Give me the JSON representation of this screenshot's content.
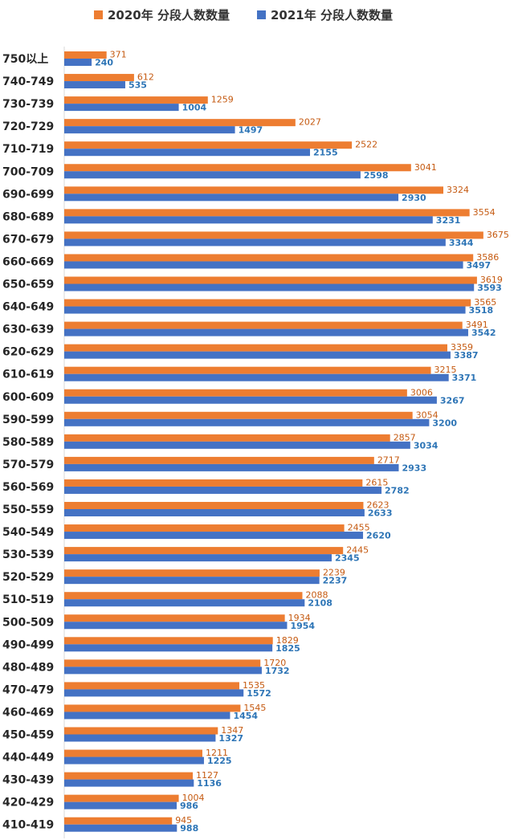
{
  "chart_data": {
    "type": "bar",
    "orientation": "horizontal",
    "title": "",
    "xlabel": "",
    "ylabel": "",
    "xlim": [
      0,
      3800
    ],
    "grid": false,
    "legend": "top",
    "categories": [
      "750以上",
      "740-749",
      "730-739",
      "720-729",
      "710-719",
      "700-709",
      "690-699",
      "680-689",
      "670-679",
      "660-669",
      "650-659",
      "640-649",
      "630-639",
      "620-629",
      "610-619",
      "600-609",
      "590-599",
      "580-589",
      "570-579",
      "560-569",
      "550-559",
      "540-549",
      "530-539",
      "520-529",
      "510-519",
      "500-509",
      "490-499",
      "480-489",
      "470-479",
      "460-469",
      "450-459",
      "440-449",
      "430-439",
      "420-429",
      "410-419"
    ],
    "series": [
      {
        "name": "2020年 分段人数数量",
        "color": "#ed7d31",
        "values": [
          371,
          612,
          1259,
          2027,
          2522,
          3041,
          3324,
          3554,
          3675,
          3586,
          3619,
          3565,
          3491,
          3359,
          3215,
          3006,
          3054,
          2857,
          2717,
          2615,
          2623,
          2455,
          2445,
          2239,
          2088,
          1934,
          1829,
          1720,
          1535,
          1545,
          1347,
          1211,
          1127,
          1004,
          945
        ]
      },
      {
        "name": "2021年 分段人数数量",
        "color": "#4472c4",
        "values": [
          240,
          535,
          1004,
          1497,
          2155,
          2598,
          2930,
          3231,
          3344,
          3497,
          3593,
          3518,
          3542,
          3387,
          3371,
          3267,
          3200,
          3034,
          2933,
          2782,
          2633,
          2620,
          2345,
          2237,
          2108,
          1954,
          1825,
          1732,
          1572,
          1454,
          1327,
          1225,
          1136,
          986,
          988
        ]
      }
    ]
  }
}
